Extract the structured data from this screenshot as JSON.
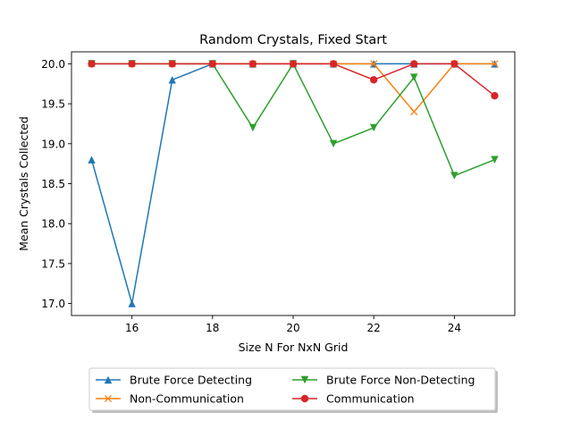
{
  "chart_data": {
    "type": "line",
    "title": "Random Crystals, Fixed Start",
    "xlabel": "Size N For NxN Grid",
    "ylabel": "Mean Crystals Collected",
    "xlim": [
      14.5,
      25.5
    ],
    "ylim": [
      16.85,
      20.15
    ],
    "xticks": [
      16,
      18,
      20,
      22,
      24
    ],
    "yticks": [
      17.0,
      17.5,
      18.0,
      18.5,
      19.0,
      19.5,
      20.0
    ],
    "grid": false,
    "legend": {
      "placement": "below-center",
      "columns": 2
    },
    "x": [
      15,
      16,
      17,
      18,
      19,
      20,
      21,
      22,
      23,
      24,
      25
    ],
    "series": [
      {
        "name": "Brute Force Detecting",
        "color": "#1f77b4",
        "marker": "triangle-up",
        "values": [
          18.8,
          17.0,
          19.8,
          20.0,
          20.0,
          20.0,
          20.0,
          20.0,
          20.0,
          20.0,
          20.0
        ]
      },
      {
        "name": "Non-Communication",
        "color": "#ff7f0e",
        "marker": "x",
        "values": [
          20.0,
          20.0,
          20.0,
          20.0,
          20.0,
          20.0,
          20.0,
          20.0,
          19.4,
          20.0,
          20.0
        ]
      },
      {
        "name": "Brute Force Non-Detecting",
        "color": "#2ca02c",
        "marker": "triangle-down",
        "values": [
          20.0,
          20.0,
          20.0,
          20.0,
          19.2,
          20.0,
          19.0,
          19.2,
          19.83,
          18.6,
          18.8
        ]
      },
      {
        "name": "Communication",
        "color": "#d62728",
        "marker": "circle",
        "values": [
          20.0,
          20.0,
          20.0,
          20.0,
          20.0,
          20.0,
          20.0,
          19.8,
          20.0,
          20.0,
          19.6
        ]
      }
    ]
  }
}
